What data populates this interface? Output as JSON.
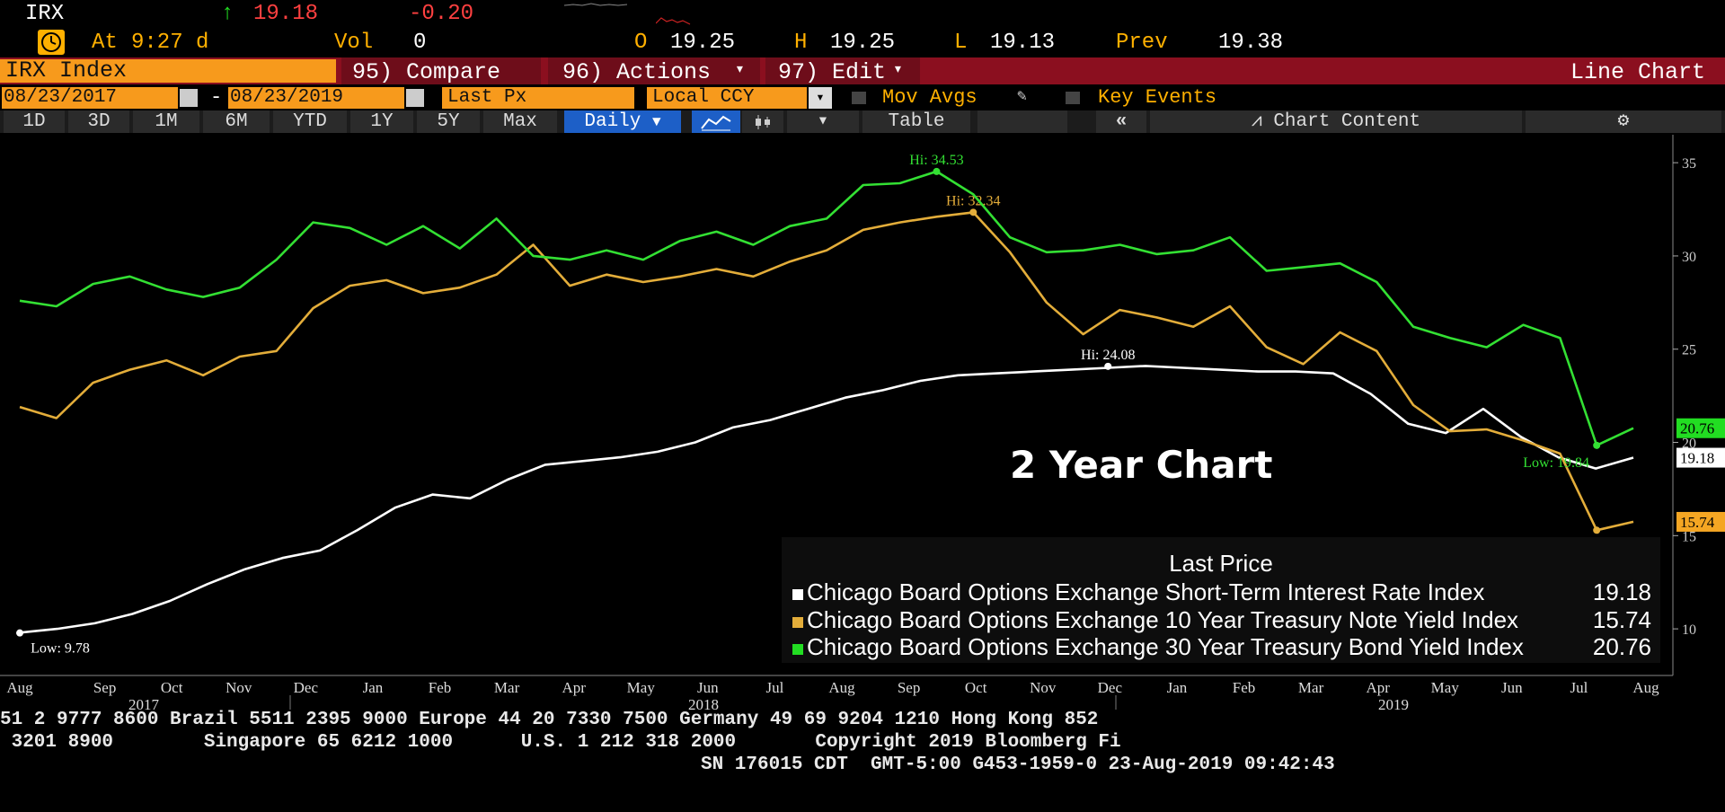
{
  "header": {
    "ticker": "IRX",
    "arrow": "↑",
    "last": "19.18",
    "change": "-0.20",
    "at_label": "At",
    "time": "9:27 d",
    "vol_label": "Vol",
    "vol": "0",
    "open_label": "O",
    "open": "19.25",
    "high_label": "H",
    "high": "19.25",
    "low_label": "L",
    "low": "19.13",
    "prev_label": "Prev",
    "prev": "19.38"
  },
  "menubar": {
    "security": "IRX Index",
    "compare": "95) Compare",
    "actions": "96) Actions",
    "edit": "97) Edit",
    "chart_type": "Line Chart"
  },
  "controls": {
    "start_date": "08/23/2017",
    "dash": "-",
    "end_date": "08/23/2019",
    "field": "Last Px",
    "currency": "Local CCY",
    "mov_avgs": "Mov Avgs",
    "key_events": "Key Events"
  },
  "toolbar": {
    "ranges": [
      "1D",
      "3D",
      "1M",
      "6M",
      "YTD",
      "1Y",
      "5Y",
      "Max"
    ],
    "frequency": "Daily",
    "table": "Table",
    "collapse": "«",
    "chart_content": "Chart Content"
  },
  "chart_data": {
    "type": "line",
    "title": "2 Year Chart",
    "ylim": [
      7.5,
      36.5
    ],
    "yticks": [
      10,
      15,
      20,
      25,
      30,
      35
    ],
    "x_month_labels": [
      "Aug",
      "Sep",
      "Oct",
      "Nov",
      "Dec",
      "Jan",
      "Feb",
      "Mar",
      "Apr",
      "May",
      "Jun",
      "Jul",
      "Aug",
      "Sep",
      "Oct",
      "Nov",
      "Dec",
      "Jan",
      "Feb",
      "Mar",
      "Apr",
      "May",
      "Jun",
      "Jul",
      "Aug"
    ],
    "x_year_labels": [
      "2017",
      "2018",
      "2019"
    ],
    "series": [
      {
        "name": "Chicago Board Options Exchange Short-Term Interest Rate Index",
        "color": "#ffffff",
        "last_label": "19.18",
        "values": [
          9.8,
          10.0,
          10.3,
          10.8,
          11.5,
          12.4,
          13.2,
          13.8,
          14.2,
          15.3,
          16.5,
          17.2,
          17.0,
          18.0,
          18.8,
          19.0,
          19.2,
          19.5,
          20.0,
          20.8,
          21.2,
          21.8,
          22.4,
          22.8,
          23.3,
          23.6,
          23.7,
          23.8,
          23.9,
          24.0,
          24.1,
          24.0,
          23.9,
          23.8,
          23.8,
          23.7,
          22.6,
          21.0,
          20.5,
          21.8,
          20.3,
          19.2,
          18.6,
          19.18
        ],
        "hi": {
          "label": "Hi: 24.08",
          "value": 24.08,
          "index": 29
        },
        "low": {
          "label": "Low: 9.78",
          "value": 9.78,
          "index": 0
        }
      },
      {
        "name": "Chicago Board Options Exchange 10 Year Treasury Note Yield Index",
        "color": "#e3ad3a",
        "last_label": "15.74",
        "values": [
          21.9,
          21.3,
          23.2,
          23.9,
          24.4,
          23.6,
          24.6,
          24.9,
          27.2,
          28.4,
          28.7,
          28.0,
          28.3,
          29.0,
          30.6,
          28.4,
          29.0,
          28.6,
          28.9,
          29.3,
          28.9,
          29.7,
          30.3,
          31.4,
          31.8,
          32.1,
          32.34,
          30.2,
          27.5,
          25.8,
          27.1,
          26.7,
          26.2,
          27.3,
          25.1,
          24.2,
          25.9,
          24.9,
          22.0,
          20.6,
          20.7,
          20.1,
          19.4,
          15.29,
          15.74
        ],
        "hi": {
          "label": "Hi: 32.34",
          "value": 32.34,
          "index": 26
        },
        "low": {
          "label": "Low: 15.29",
          "value": 15.29,
          "index": 43
        }
      },
      {
        "name": "Chicago Board Options Exchange 30 Year Treasury Bond Yield Index",
        "color": "#33e033",
        "last_label": "20.76",
        "values": [
          27.6,
          27.3,
          28.5,
          28.9,
          28.2,
          27.8,
          28.3,
          29.8,
          31.8,
          31.5,
          30.6,
          31.6,
          30.4,
          32.0,
          30.0,
          29.8,
          30.3,
          29.8,
          30.8,
          31.3,
          30.6,
          31.6,
          32.0,
          33.8,
          33.9,
          34.53,
          33.3,
          31.0,
          30.2,
          30.3,
          30.6,
          30.1,
          30.3,
          31.0,
          29.2,
          29.4,
          29.6,
          28.6,
          26.2,
          25.6,
          25.1,
          26.3,
          25.6,
          19.84,
          20.76
        ],
        "hi": {
          "label": "Hi: 34.53",
          "value": 34.53,
          "index": 25
        },
        "low": {
          "label": "Low: 19.84",
          "value": 19.84,
          "index": 43
        }
      }
    ],
    "legend": {
      "title": "Last Price",
      "position": "bottom-right",
      "entries": [
        {
          "name": "Chicago Board Options Exchange Short-Term Interest Rate Index",
          "value": "19.18",
          "color": "#ffffff"
        },
        {
          "name": "Chicago Board Options Exchange 10 Year Treasury Note Yield Index",
          "value": "15.74",
          "color": "#e3ad3a"
        },
        {
          "name": "Chicago Board Options Exchange 30 Year Treasury Bond Yield Index",
          "value": "20.76",
          "color": "#22dd22"
        }
      ]
    }
  },
  "footer": {
    "line1": "51 2 9777 8600 Brazil 5511 2395 9000 Europe 44 20 7330 7500 Germany 49 69 9204 1210 Hong Kong 852",
    "line2": " 3201 8900        Singapore 65 6212 1000      U.S. 1 212 318 2000       Copyright 2019 Bloomberg Fi",
    "line3": "SN 176015 CDT  GMT-5:00 G453-1959-0 23-Aug-2019 09:42:43"
  }
}
